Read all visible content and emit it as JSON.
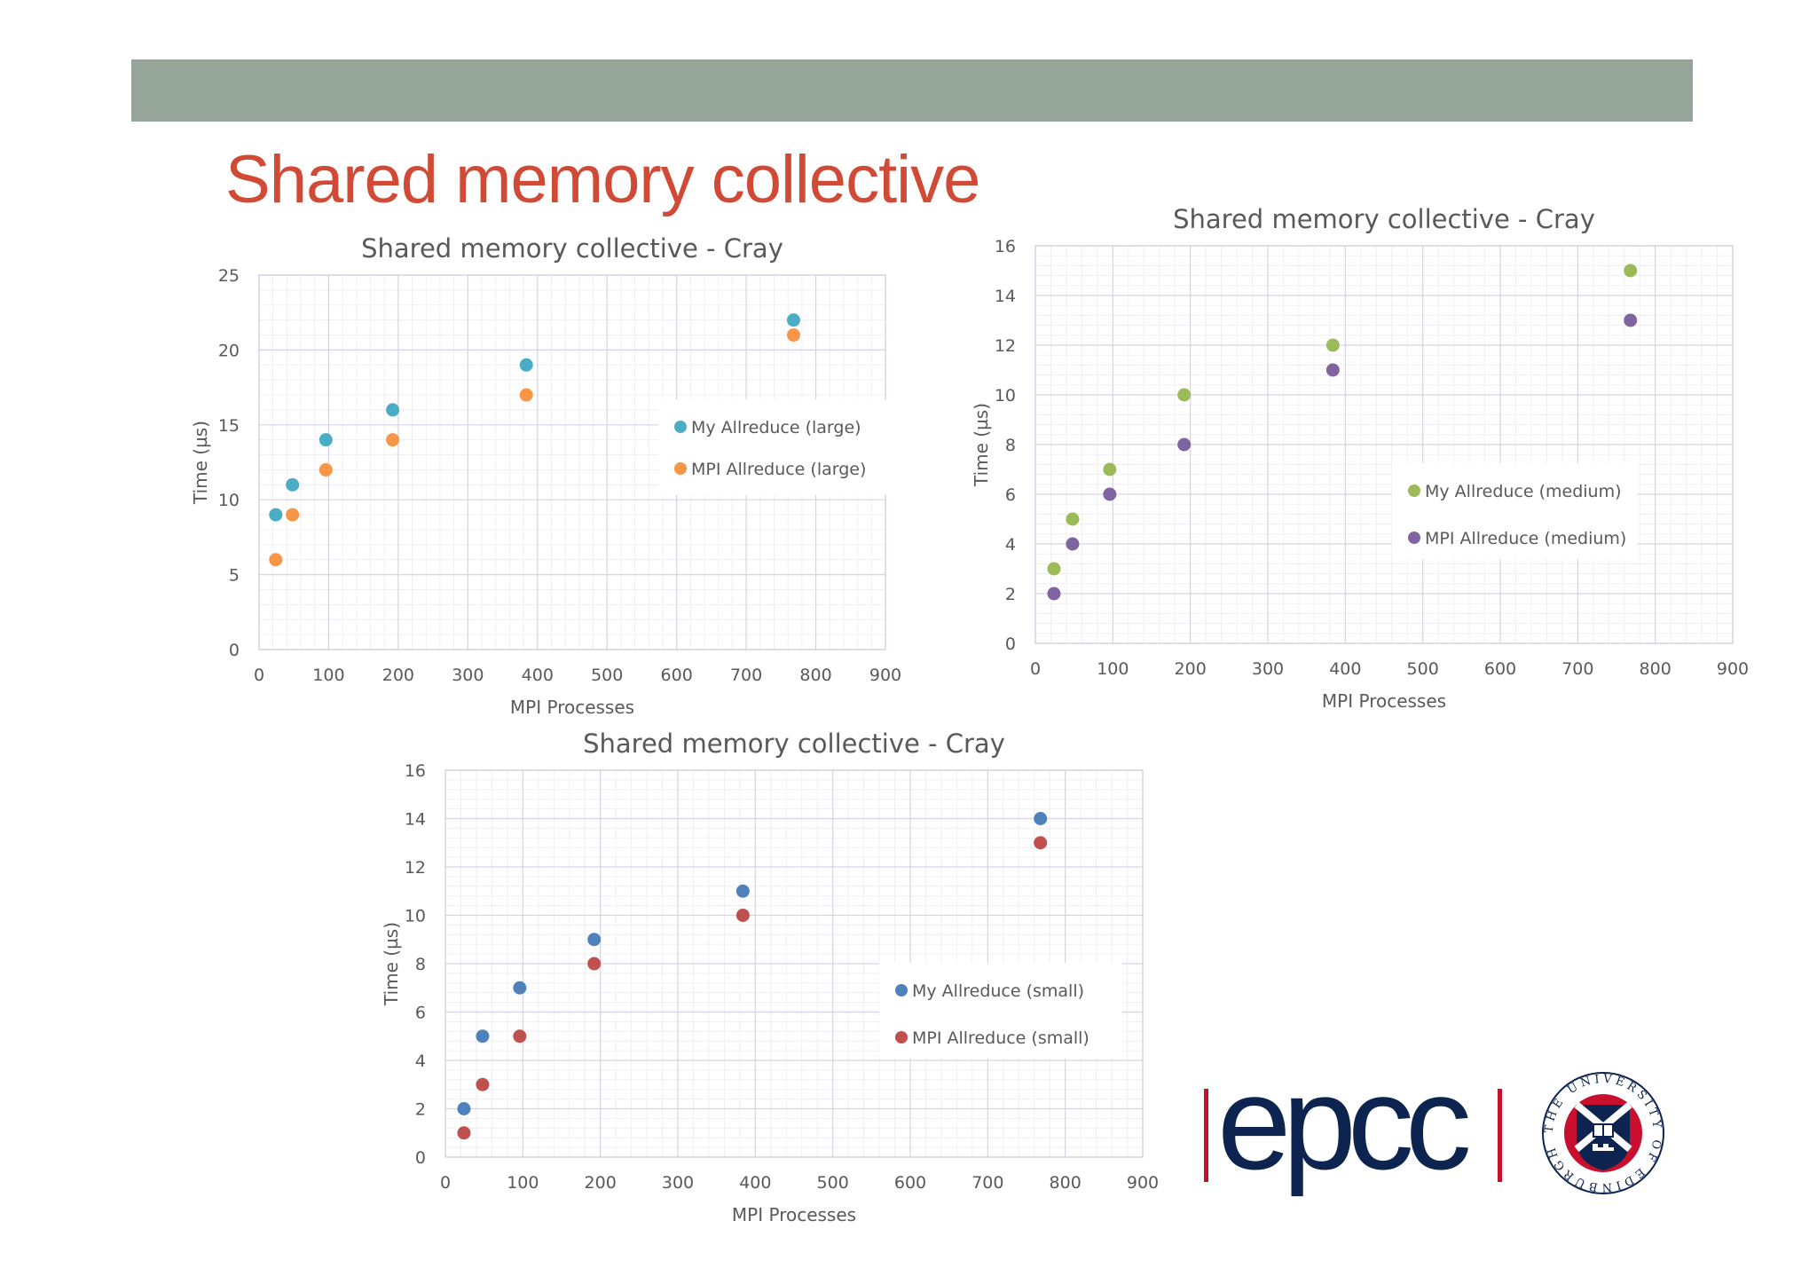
{
  "slide": {
    "title": "Shared memory collective",
    "banner_color": "#95a599",
    "title_color": "#d04a36"
  },
  "logo": {
    "brand": "epcc",
    "brand_color": "#0d2350",
    "bar_color": "#c8102e",
    "seal_text": "THE UNIVERSITY OF EDINBURGH"
  },
  "chart_data": [
    {
      "type": "scatter",
      "title": "Shared memory collective - Cray",
      "xlabel": "MPI Processes",
      "ylabel": "Time (µs)",
      "xlim": [
        0,
        900
      ],
      "ylim": [
        0,
        25
      ],
      "xticks": [
        0,
        100,
        200,
        300,
        400,
        500,
        600,
        700,
        800,
        900
      ],
      "yticks": [
        0,
        5,
        10,
        15,
        20,
        25
      ],
      "grid": true,
      "legend": "right-center",
      "series": [
        {
          "name": "My Allreduce (large)",
          "color": "#4bacc6",
          "x": [
            24,
            48,
            96,
            192,
            384,
            768
          ],
          "y": [
            9,
            11,
            14,
            16,
            19,
            22
          ]
        },
        {
          "name": "MPI Allreduce (large)",
          "color": "#f79646",
          "x": [
            24,
            48,
            96,
            192,
            384,
            768
          ],
          "y": [
            6,
            9,
            12,
            14,
            17,
            21
          ]
        }
      ]
    },
    {
      "type": "scatter",
      "title": "Shared memory collective - Cray",
      "xlabel": "MPI Processes",
      "ylabel": "Time (µs)",
      "xlim": [
        0,
        900
      ],
      "ylim": [
        0,
        16
      ],
      "xticks": [
        0,
        100,
        200,
        300,
        400,
        500,
        600,
        700,
        800,
        900
      ],
      "yticks": [
        0,
        2,
        4,
        6,
        8,
        10,
        12,
        14,
        16
      ],
      "grid": true,
      "legend": "bottom-right",
      "series": [
        {
          "name": "My Allreduce (medium)",
          "color": "#9bbb59",
          "x": [
            24,
            48,
            96,
            192,
            384,
            768
          ],
          "y": [
            3,
            5,
            7,
            10,
            12,
            15
          ]
        },
        {
          "name": "MPI Allreduce (medium)",
          "color": "#8064a2",
          "x": [
            24,
            48,
            96,
            192,
            384,
            768
          ],
          "y": [
            2,
            4,
            6,
            8,
            11,
            13
          ]
        }
      ]
    },
    {
      "type": "scatter",
      "title": "Shared memory collective - Cray",
      "xlabel": "MPI Processes",
      "ylabel": "Time (µs)",
      "xlim": [
        0,
        900
      ],
      "ylim": [
        0,
        16
      ],
      "xticks": [
        0,
        100,
        200,
        300,
        400,
        500,
        600,
        700,
        800,
        900
      ],
      "yticks": [
        0,
        2,
        4,
        6,
        8,
        10,
        12,
        14,
        16
      ],
      "grid": true,
      "legend": "bottom-right",
      "series": [
        {
          "name": "My Allreduce (small)",
          "color": "#4f81bd",
          "x": [
            24,
            48,
            96,
            192,
            384,
            768
          ],
          "y": [
            2,
            5,
            7,
            9,
            11,
            14
          ]
        },
        {
          "name": "MPI Allreduce (small)",
          "color": "#c0504d",
          "x": [
            24,
            48,
            96,
            192,
            384,
            768
          ],
          "y": [
            1,
            3,
            5,
            8,
            10,
            13
          ]
        }
      ]
    }
  ]
}
